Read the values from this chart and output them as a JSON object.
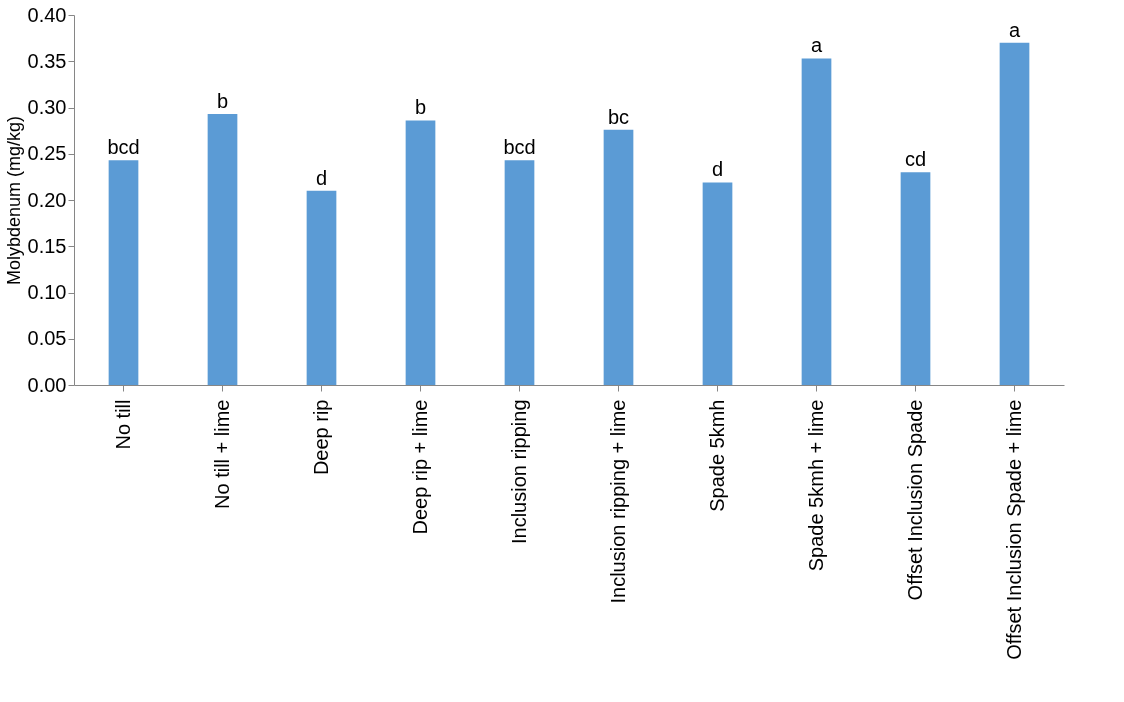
{
  "chart_data": {
    "type": "bar",
    "ylabel": "Molybdenum (mg/kg)",
    "categories": [
      "No till",
      "No till + lime",
      "Deep rip",
      "Deep rip + lime",
      "Inclusion ripping",
      "Inclusion ripping + lime",
      "Spade 5kmh",
      "Spade 5kmh + lime",
      "Offset Inclusion Spade",
      "Offset Inclusion Spade + lime"
    ],
    "values": [
      0.243,
      0.293,
      0.21,
      0.286,
      0.243,
      0.276,
      0.219,
      0.353,
      0.23,
      0.37
    ],
    "value_labels": [
      "bcd",
      "b",
      "d",
      "b",
      "bcd",
      "bc",
      "d",
      "a",
      "cd",
      "a"
    ],
    "color": "#5b9bd5",
    "ylim": [
      0,
      0.4
    ],
    "yticks": [
      {
        "value": 0,
        "label": "0.00"
      },
      {
        "value": 0.05,
        "label": "0.05"
      },
      {
        "value": 0.1,
        "label": "0.10"
      },
      {
        "value": 0.15,
        "label": "0.15"
      },
      {
        "value": 0.2,
        "label": "0.20"
      },
      {
        "value": 0.25,
        "label": "0.25"
      },
      {
        "value": 0.3,
        "label": "0.30"
      },
      {
        "value": 0.35,
        "label": "0.35"
      },
      {
        "value": 0.4,
        "label": "0.40"
      }
    ],
    "grid": false
  }
}
